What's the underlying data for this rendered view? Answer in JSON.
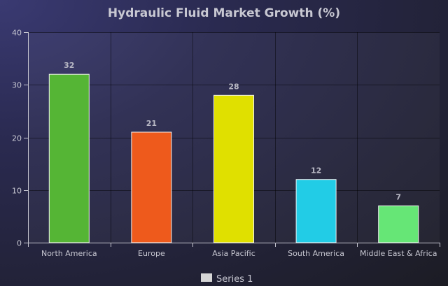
{
  "chart_data": {
    "type": "bar",
    "title": "Hydraulic Fluid Market Growth (%)",
    "xlabel": "",
    "ylabel": "",
    "categories": [
      "North America",
      "Europe",
      "Asia Pacific",
      "South America",
      "Middle East & Africa"
    ],
    "series": [
      {
        "name": "Series 1",
        "values": [
          32,
          21,
          28,
          12,
          7
        ]
      }
    ],
    "bar_colors": [
      "#55b535",
      "#ee5a1c",
      "#e0e000",
      "#22cce6",
      "#66e676"
    ],
    "legend_color": "#d6d6d6",
    "ylim": [
      0,
      40
    ],
    "yticks": [
      0,
      10,
      20,
      30,
      40
    ],
    "grid": true,
    "legend_position": "bottom-center",
    "data_labels": true
  }
}
